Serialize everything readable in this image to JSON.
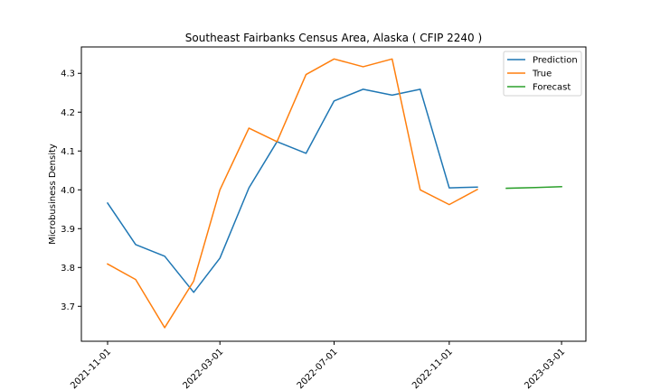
{
  "chart_data": {
    "type": "line",
    "title": "Southeast Fairbanks Census Area, Alaska ( CFIP 2240 )",
    "xlabel": "",
    "ylabel": "Microbusiness Density",
    "xlim": [
      "2021-10-04",
      "2023-03-27"
    ],
    "ylim": [
      3.61,
      4.368
    ],
    "x_ticks": [
      "2021-11-01",
      "2022-03-01",
      "2022-07-01",
      "2022-11-01",
      "2023-03-01"
    ],
    "y_ticks": [
      3.7,
      3.8,
      3.9,
      4.0,
      4.1,
      4.2,
      4.3
    ],
    "grid": false,
    "legend_position": "top-right",
    "series": [
      {
        "name": "Prediction",
        "color": "#1f77b4",
        "x": [
          "2021-11-01",
          "2021-12-01",
          "2022-01-01",
          "2022-02-01",
          "2022-03-01",
          "2022-04-01",
          "2022-05-01",
          "2022-06-01",
          "2022-07-01",
          "2022-08-01",
          "2022-09-01",
          "2022-10-01",
          "2022-11-01",
          "2022-12-01"
        ],
        "y": [
          3.966,
          3.859,
          3.829,
          3.736,
          3.824,
          4.005,
          4.124,
          4.094,
          4.229,
          4.259,
          4.244,
          4.259,
          4.005,
          4.007
        ]
      },
      {
        "name": "True",
        "color": "#ff7f0e",
        "x": [
          "2021-11-01",
          "2021-12-01",
          "2022-01-01",
          "2022-02-01",
          "2022-03-01",
          "2022-04-01",
          "2022-05-01",
          "2022-06-01",
          "2022-07-01",
          "2022-08-01",
          "2022-09-01",
          "2022-10-01",
          "2022-11-01",
          "2022-12-01"
        ],
        "y": [
          3.809,
          3.769,
          3.645,
          3.765,
          4.0,
          4.159,
          4.124,
          4.297,
          4.337,
          4.317,
          4.337,
          4.0,
          3.962,
          4.001
        ]
      },
      {
        "name": "Forecast",
        "color": "#2ca02c",
        "x": [
          "2023-01-01",
          "2023-02-01",
          "2023-03-01"
        ],
        "y": [
          4.004,
          4.006,
          4.008
        ]
      }
    ]
  }
}
